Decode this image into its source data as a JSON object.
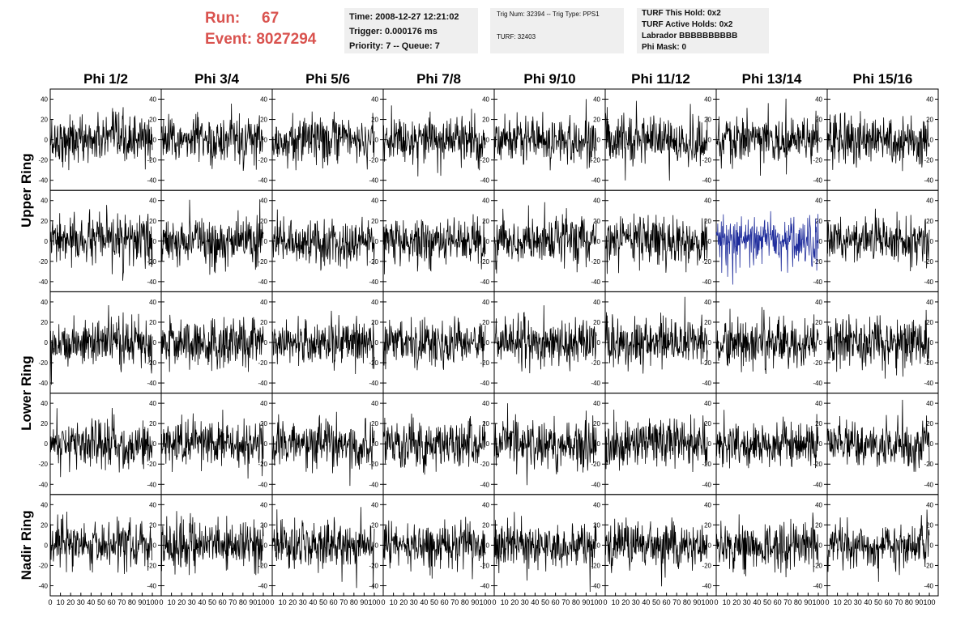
{
  "header": {
    "run_label": "Run:",
    "run_value": "67",
    "event_label": "Event:",
    "event_value": "8027294",
    "time": "Time: 2008-12-27 12:21:02",
    "trigger": "Trigger: 0.000176 ms",
    "priority": "Priority: 7 -- Queue: 7",
    "trig_num": "Trig Num: 32394 -- Trig Type: PPS1",
    "turf": "TURF: 32403",
    "turf_hold": "TURF This Hold: 0x2",
    "turf_active": "TURF Active Holds: 0x2",
    "labrador": "Labrador BBBBBBBBBB",
    "phi_mask": "Phi Mask: 0"
  },
  "chart_data": {
    "type": "line",
    "columns": [
      "Phi 1/2",
      "Phi 3/4",
      "Phi 5/6",
      "Phi 7/8",
      "Phi 9/10",
      "Phi 11/12",
      "Phi 13/14",
      "Phi 15/16"
    ],
    "row_labels": [
      "Upper Ring",
      "Lower Ring",
      "Nadir Ring"
    ],
    "rows_per_ring": [
      2,
      2,
      1
    ],
    "ylim": [
      -50,
      50
    ],
    "y_ticks": [
      -40,
      -20,
      0,
      20,
      40
    ],
    "xlim": [
      0,
      100
    ],
    "x_tick_labels": [
      "0",
      "10",
      "20",
      "30",
      "40",
      "50",
      "60",
      "70",
      "80",
      "90",
      "100"
    ],
    "samples_per_trace": 260,
    "amplitude_sigma": 12,
    "default_color": "#000000",
    "highlight_color": "#1f2d9c",
    "highlight_panel": {
      "row": 1,
      "col": 6
    }
  }
}
